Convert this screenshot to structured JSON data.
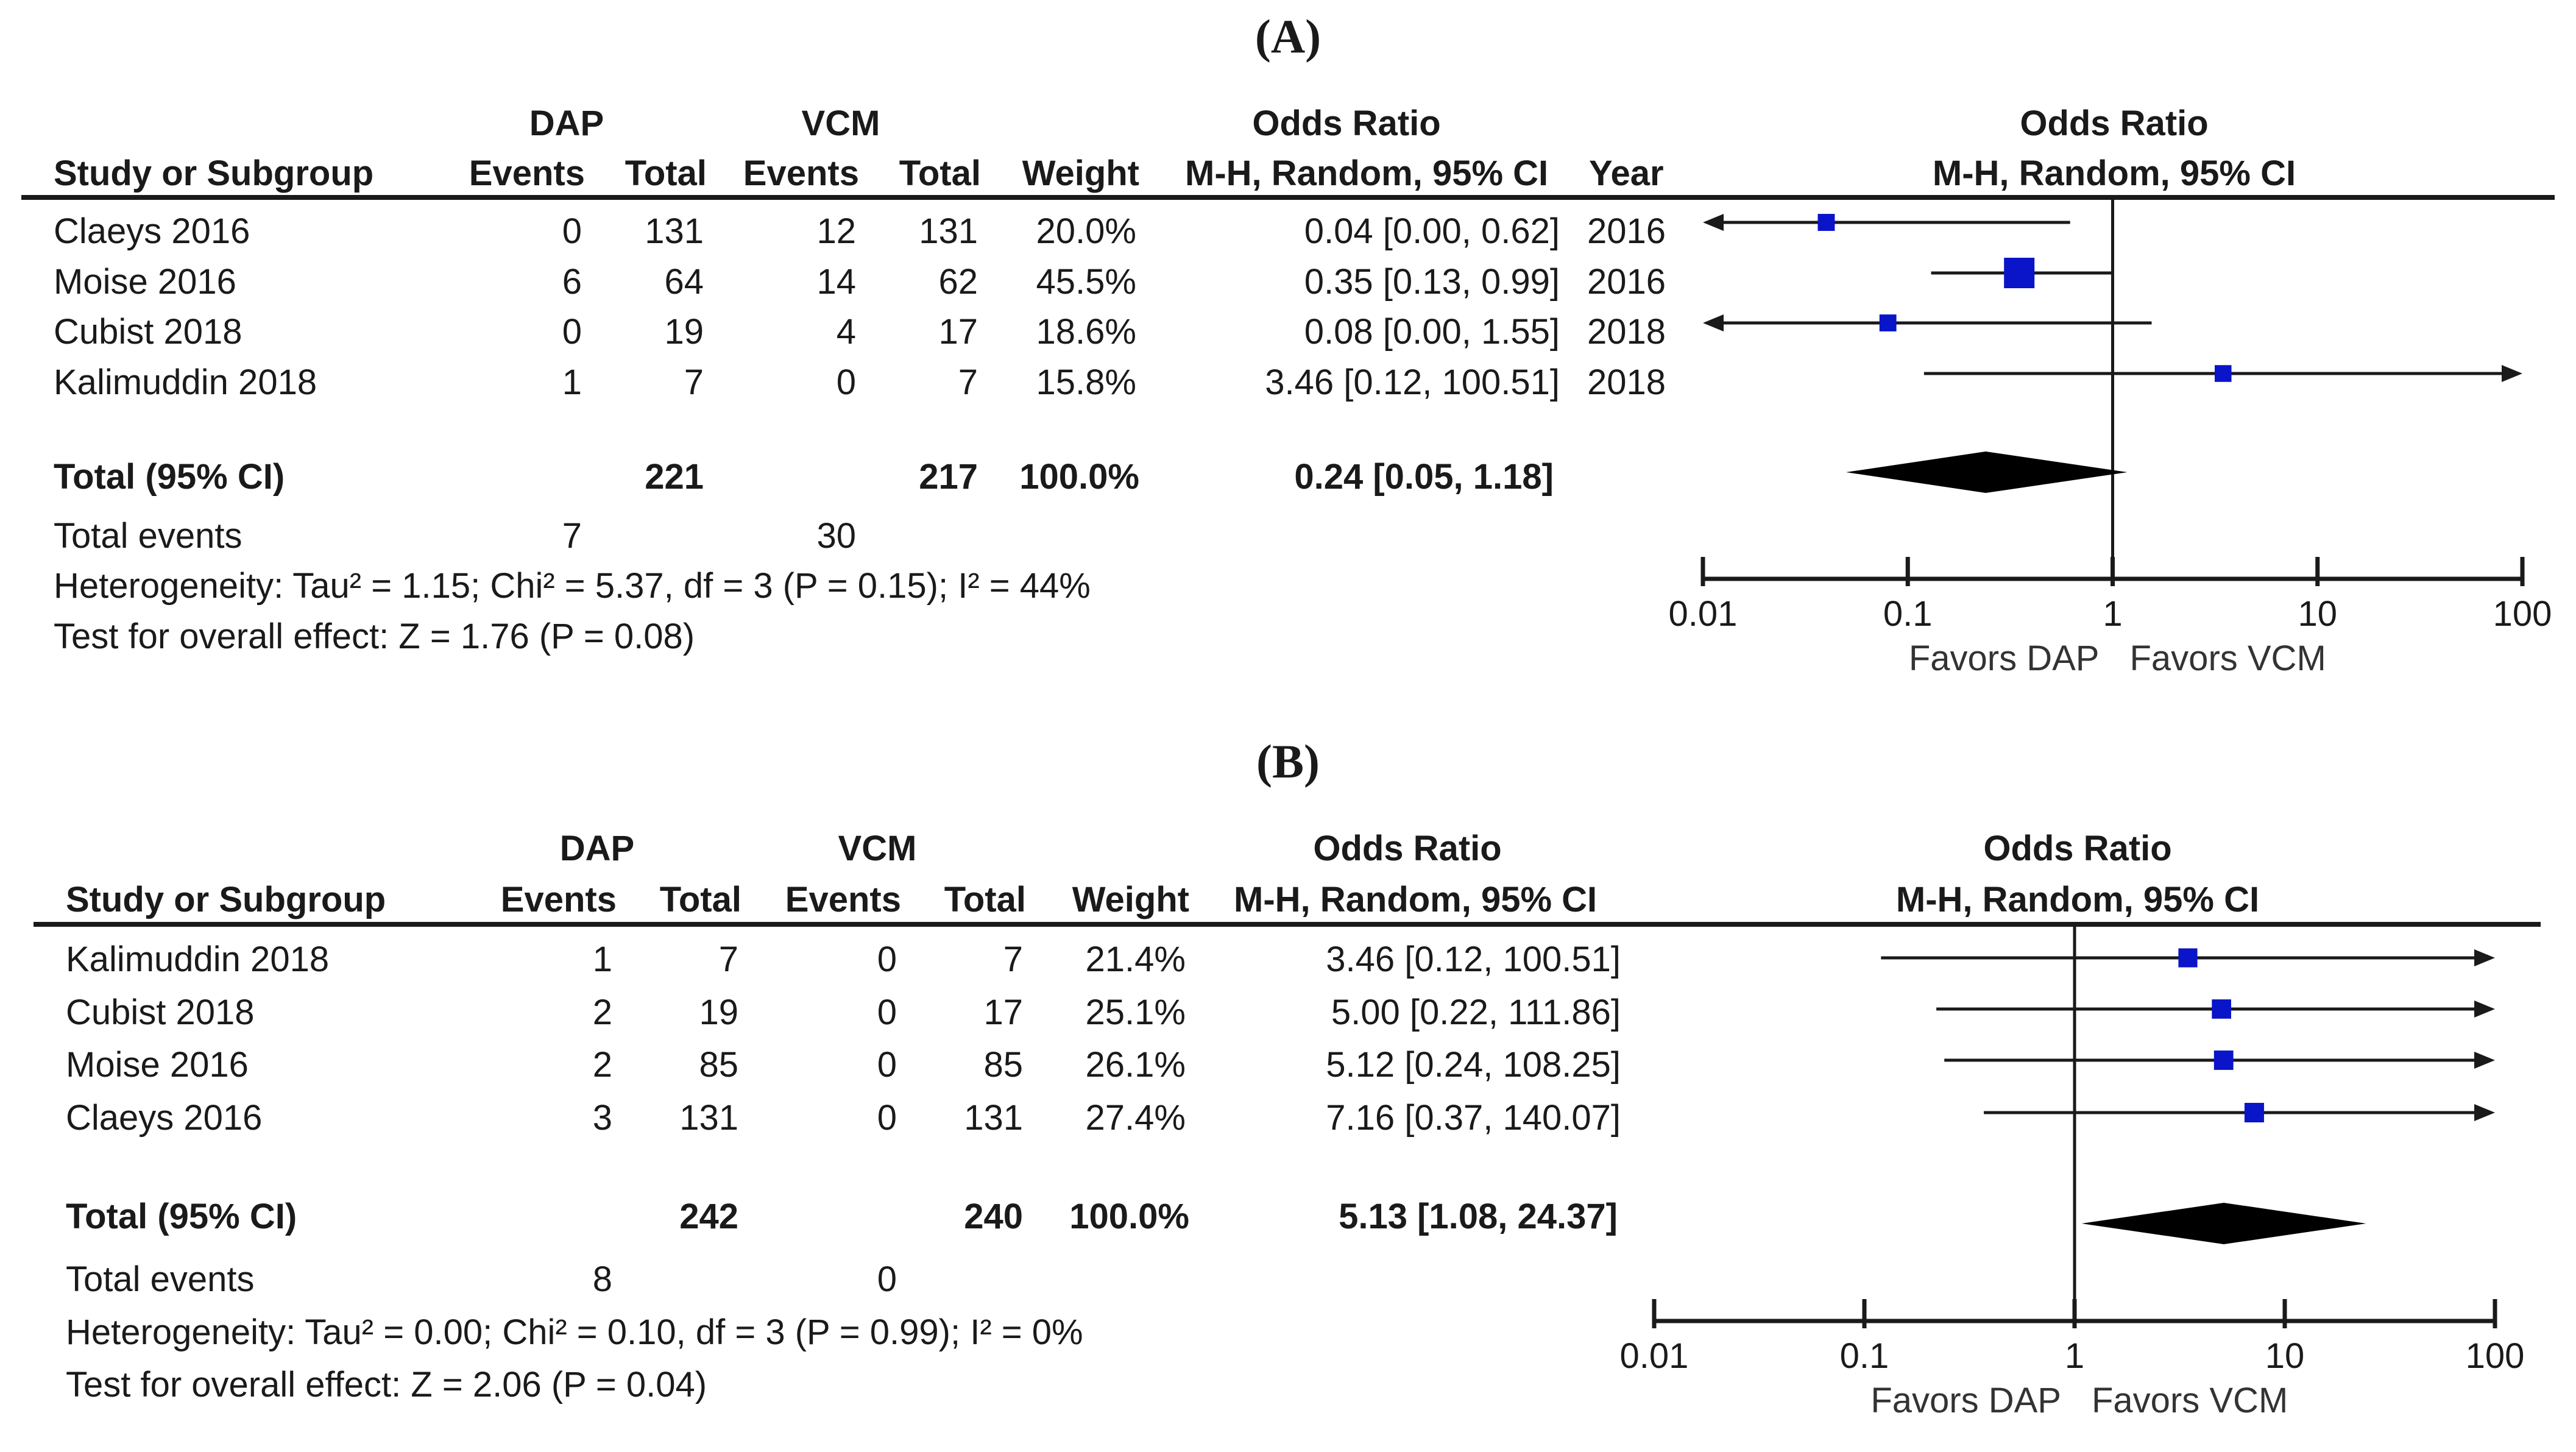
{
  "panels": [
    {
      "label": "(A)",
      "headers": {
        "group1": "DAP",
        "group2": "VCM",
        "study": "Study or Subgroup",
        "events": "Events",
        "total": "Total",
        "weight": "Weight",
        "or_top": "Odds Ratio",
        "or_sub": "M-H, Random, 95% CI",
        "year": "Year",
        "plot_top": "Odds Ratio",
        "plot_sub": "M-H, Random, 95% CI"
      },
      "rows": [
        {
          "study": "Claeys 2016",
          "e1": "0",
          "t1": "131",
          "e2": "12",
          "t2": "131",
          "weight": "20.0%",
          "ci": "0.04 [0.00, 0.62]",
          "year": "2016"
        },
        {
          "study": "Moise 2016",
          "e1": "6",
          "t1": "64",
          "e2": "14",
          "t2": "62",
          "weight": "45.5%",
          "ci": "0.35 [0.13, 0.99]",
          "year": "2016"
        },
        {
          "study": "Cubist 2018",
          "e1": "0",
          "t1": "19",
          "e2": "4",
          "t2": "17",
          "weight": "18.6%",
          "ci": "0.08 [0.00, 1.55]",
          "year": "2018"
        },
        {
          "study": "Kalimuddin 2018",
          "e1": "1",
          "t1": "7",
          "e2": "0",
          "t2": "7",
          "weight": "15.8%",
          "ci": "3.46 [0.12, 100.51]",
          "year": "2018"
        }
      ],
      "total": {
        "label": "Total (95% CI)",
        "t1": "221",
        "t2": "217",
        "weight": "100.0%",
        "ci": "0.24 [0.05, 1.18]"
      },
      "events": {
        "label": "Total events",
        "e1": "7",
        "e2": "30"
      },
      "heterogeneity": "Heterogeneity: Tau² = 1.15; Chi² = 5.37, df = 3 (P = 0.15); I² = 44%",
      "overall": "Test for overall effect: Z = 1.76 (P = 0.08)",
      "axis_ticks": [
        "0.01",
        "0.1",
        "1",
        "10",
        "100"
      ],
      "favors_left": "Favors DAP",
      "favors_right": "Favors VCM"
    },
    {
      "label": "(B)",
      "headers": {
        "group1": "DAP",
        "group2": "VCM",
        "study": "Study or Subgroup",
        "events": "Events",
        "total": "Total",
        "weight": "Weight",
        "or_top": "Odds Ratio",
        "or_sub": "M-H, Random, 95% CI",
        "plot_top": "Odds Ratio",
        "plot_sub": "M-H, Random, 95% CI"
      },
      "rows": [
        {
          "study": "Kalimuddin 2018",
          "e1": "1",
          "t1": "7",
          "e2": "0",
          "t2": "7",
          "weight": "21.4%",
          "ci": "3.46 [0.12, 100.51]"
        },
        {
          "study": "Cubist 2018",
          "e1": "2",
          "t1": "19",
          "e2": "0",
          "t2": "17",
          "weight": "25.1%",
          "ci": "5.00 [0.22, 111.86]"
        },
        {
          "study": "Moise 2016",
          "e1": "2",
          "t1": "85",
          "e2": "0",
          "t2": "85",
          "weight": "26.1%",
          "ci": "5.12 [0.24, 108.25]"
        },
        {
          "study": "Claeys 2016",
          "e1": "3",
          "t1": "131",
          "e2": "0",
          "t2": "131",
          "weight": "27.4%",
          "ci": "7.16 [0.37, 140.07]"
        }
      ],
      "total": {
        "label": "Total (95% CI)",
        "t1": "242",
        "t2": "240",
        "weight": "100.0%",
        "ci": "5.13 [1.08, 24.37]"
      },
      "events": {
        "label": "Total events",
        "e1": "8",
        "e2": "0"
      },
      "heterogeneity": "Heterogeneity: Tau² = 0.00; Chi² = 0.10, df = 3 (P = 0.99); I² = 0%",
      "overall": "Test for overall effect: Z = 2.06 (P = 0.04)",
      "axis_ticks": [
        "0.01",
        "0.1",
        "1",
        "10",
        "100"
      ],
      "favors_left": "Favors DAP",
      "favors_right": "Favors VCM"
    }
  ],
  "colors": {
    "marker": "#0a14c8",
    "line": "#1a1a1a",
    "diamond": "#000000"
  },
  "chart_data": [
    {
      "type": "forest",
      "title": "(A)",
      "scale": "log",
      "xlim": [
        0.01,
        100
      ],
      "null_value": 1,
      "studies": [
        {
          "name": "Claeys 2016",
          "or": 0.04,
          "lo": 0.0,
          "hi": 0.62,
          "weight": 20.0
        },
        {
          "name": "Moise 2016",
          "or": 0.35,
          "lo": 0.13,
          "hi": 0.99,
          "weight": 45.5
        },
        {
          "name": "Cubist 2018",
          "or": 0.08,
          "lo": 0.0,
          "hi": 1.55,
          "weight": 18.6
        },
        {
          "name": "Kalimuddin 2018",
          "or": 3.46,
          "lo": 0.12,
          "hi": 100.51,
          "weight": 15.8
        }
      ],
      "pooled": {
        "or": 0.24,
        "lo": 0.05,
        "hi": 1.18
      }
    },
    {
      "type": "forest",
      "title": "(B)",
      "scale": "log",
      "xlim": [
        0.01,
        100
      ],
      "null_value": 1,
      "studies": [
        {
          "name": "Kalimuddin 2018",
          "or": 3.46,
          "lo": 0.12,
          "hi": 100.51,
          "weight": 21.4
        },
        {
          "name": "Cubist 2018",
          "or": 5.0,
          "lo": 0.22,
          "hi": 111.86,
          "weight": 25.1
        },
        {
          "name": "Moise 2016",
          "or": 5.12,
          "lo": 0.24,
          "hi": 108.25,
          "weight": 26.1
        },
        {
          "name": "Claeys 2016",
          "or": 7.16,
          "lo": 0.37,
          "hi": 140.07,
          "weight": 27.4
        }
      ],
      "pooled": {
        "or": 5.13,
        "lo": 1.08,
        "hi": 24.37
      }
    }
  ]
}
